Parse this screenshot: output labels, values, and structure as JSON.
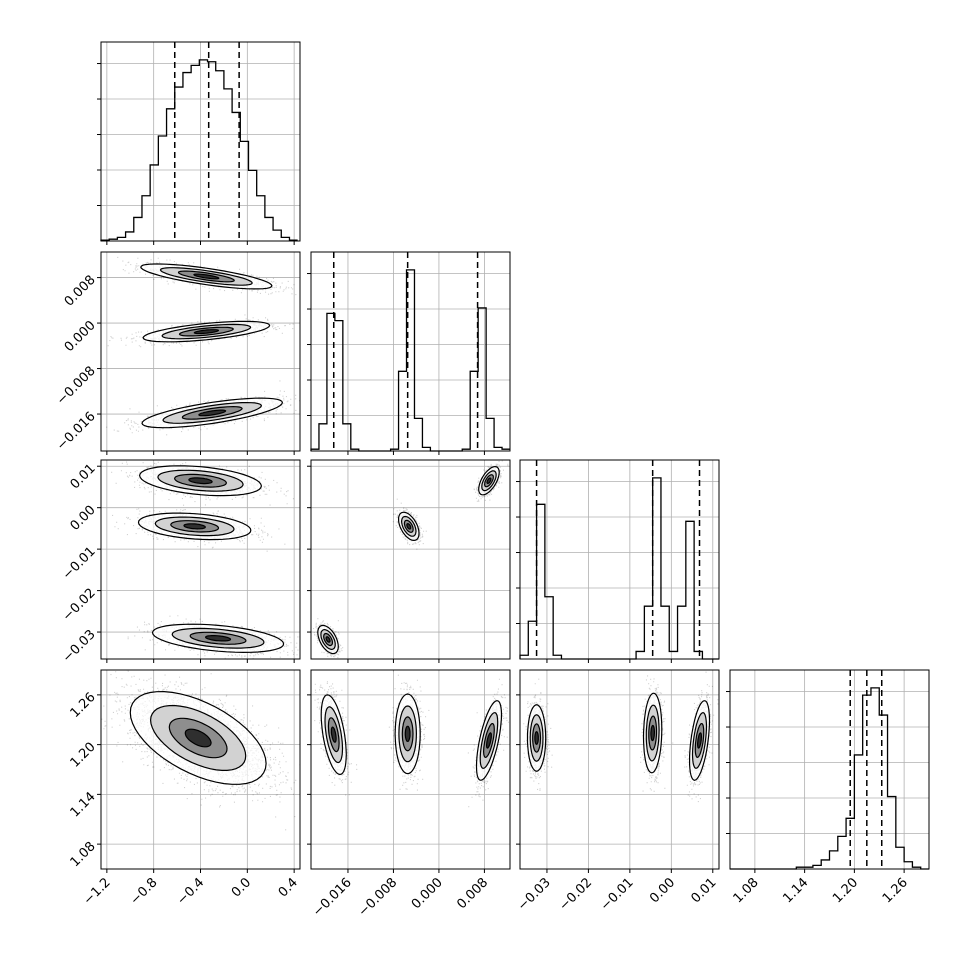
{
  "chart_data": {
    "type": "corner",
    "title": "",
    "grid": true,
    "colors": {
      "hist": "#000000",
      "grid": "#b0b0b0",
      "points": "#000000",
      "contour": "#000000",
      "density": [
        "#ffffff",
        "#c9c9c9",
        "#8c8c8c",
        "#4a4a4a",
        "#141414"
      ]
    },
    "params": [
      {
        "range": [
          -1.25,
          0.45
        ],
        "ticks": [
          -1.2,
          -0.8,
          -0.4,
          0.0,
          0.4
        ],
        "tick_labels": [
          "−1.2",
          "−0.8",
          "−0.4",
          "0.0",
          "0.4"
        ],
        "quantiles": [
          -0.62,
          -0.33,
          -0.07
        ]
      },
      {
        "range": [
          -0.0225,
          0.0125
        ],
        "ticks": [
          -0.016,
          -0.008,
          0.0,
          0.008
        ],
        "tick_labels": [
          "−0.016",
          "−0.008",
          "0.000",
          "0.008"
        ],
        "quantiles": [
          -0.0185,
          -0.0055,
          0.0068
        ]
      },
      {
        "range": [
          -0.0365,
          0.0115
        ],
        "ticks": [
          -0.03,
          -0.02,
          -0.01,
          0.0,
          0.01
        ],
        "tick_labels": [
          "−0.03",
          "−0.02",
          "−0.01",
          "0.00",
          "0.01"
        ],
        "quantiles": [
          -0.0325,
          -0.0045,
          0.0068
        ]
      },
      {
        "range": [
          1.05,
          1.29
        ],
        "ticks": [
          1.08,
          1.14,
          1.2,
          1.26
        ],
        "tick_labels": [
          "1.08",
          "1.14",
          "1.20",
          "1.26"
        ],
        "quantiles": [
          1.195,
          1.215,
          1.233
        ]
      }
    ],
    "histograms": [
      {
        "param": 0,
        "bins": [
          -1.25,
          -1.18,
          -1.11,
          -1.04,
          -0.97,
          -0.9,
          -0.83,
          -0.76,
          -0.69,
          -0.62,
          -0.55,
          -0.48,
          -0.41,
          -0.34,
          -0.27,
          -0.2,
          -0.13,
          -0.06,
          0.01,
          0.08,
          0.15,
          0.22,
          0.29,
          0.36,
          0.43
        ],
        "counts": [
          0.005,
          0.01,
          0.02,
          0.05,
          0.13,
          0.25,
          0.42,
          0.58,
          0.73,
          0.85,
          0.93,
          0.97,
          1.0,
          0.99,
          0.94,
          0.84,
          0.71,
          0.55,
          0.39,
          0.25,
          0.13,
          0.06,
          0.02,
          0.005
        ]
      },
      {
        "param": 1,
        "bins": [
          -0.0225,
          -0.0211,
          -0.0197,
          -0.0183,
          -0.0169,
          -0.0155,
          -0.0141,
          -0.0127,
          -0.0113,
          -0.0099,
          -0.0085,
          -0.0071,
          -0.0057,
          -0.0043,
          -0.0029,
          -0.0015,
          -0.0001,
          0.0013,
          0.0027,
          0.0041,
          0.0055,
          0.0069,
          0.0083,
          0.0097,
          0.0111,
          0.0125
        ],
        "counts": [
          0.01,
          0.15,
          0.76,
          0.72,
          0.15,
          0.01,
          0.0,
          0.0,
          0.0,
          0.0,
          0.01,
          0.44,
          1.0,
          0.18,
          0.02,
          0.0,
          0.0,
          0.0,
          0.0,
          0.01,
          0.44,
          0.79,
          0.18,
          0.02,
          0.01
        ]
      },
      {
        "param": 2,
        "bins": [
          -0.0365,
          -0.0345,
          -0.0325,
          -0.0305,
          -0.0285,
          -0.0265,
          -0.0245,
          -0.0225,
          -0.0205,
          -0.0185,
          -0.0165,
          -0.0145,
          -0.0125,
          -0.0105,
          -0.0085,
          -0.0065,
          -0.0045,
          -0.0025,
          -0.0005,
          0.0015,
          0.0035,
          0.0055,
          0.0075,
          0.0095,
          0.0115
        ],
        "counts": [
          0.02,
          0.2,
          0.82,
          0.33,
          0.02,
          0.0,
          0.0,
          0.0,
          0.0,
          0.0,
          0.0,
          0.0,
          0.0,
          0.0,
          0.04,
          0.28,
          0.96,
          0.28,
          0.04,
          0.28,
          0.73,
          0.04,
          0.0,
          0.0
        ]
      },
      {
        "param": 3,
        "bins": [
          1.05,
          1.06,
          1.07,
          1.08,
          1.09,
          1.1,
          1.11,
          1.12,
          1.13,
          1.14,
          1.15,
          1.16,
          1.17,
          1.18,
          1.19,
          1.2,
          1.21,
          1.22,
          1.23,
          1.24,
          1.25,
          1.26,
          1.27,
          1.28,
          1.29
        ],
        "counts": [
          0.0,
          0.0,
          0.0,
          0.0,
          0.0,
          0.0,
          0.0,
          0.0,
          0.01,
          0.01,
          0.02,
          0.05,
          0.1,
          0.18,
          0.28,
          0.63,
          0.96,
          1.0,
          0.85,
          0.4,
          0.12,
          0.04,
          0.01,
          0.0
        ]
      }
    ],
    "clusters": [
      {
        "row": 1,
        "col": 0,
        "blobs": [
          {
            "cx": -0.35,
            "cy": 0.0082,
            "sx": 0.28,
            "sy": 0.0011,
            "rho": -0.75,
            "n": 1000
          },
          {
            "cx": -0.35,
            "cy": -0.0015,
            "sx": 0.27,
            "sy": 0.0009,
            "rho": 0.6,
            "n": 1000
          },
          {
            "cx": -0.3,
            "cy": -0.0158,
            "sx": 0.3,
            "sy": 0.0013,
            "rho": 0.7,
            "n": 1000
          }
        ]
      },
      {
        "row": 2,
        "col": 0,
        "blobs": [
          {
            "cx": -0.4,
            "cy": 0.0065,
            "sx": 0.26,
            "sy": 0.0018,
            "rho": -0.35,
            "n": 1000
          },
          {
            "cx": -0.45,
            "cy": -0.0045,
            "sx": 0.24,
            "sy": 0.0016,
            "rho": -0.3,
            "n": 1000
          },
          {
            "cx": -0.25,
            "cy": -0.0315,
            "sx": 0.28,
            "sy": 0.0017,
            "rho": -0.4,
            "n": 1000
          }
        ]
      },
      {
        "row": 2,
        "col": 1,
        "blobs": [
          {
            "cx": 0.0088,
            "cy": 0.0065,
            "sx": 0.0009,
            "sy": 0.0017,
            "rho": 0.6,
            "n": 800
          },
          {
            "cx": -0.0053,
            "cy": -0.0045,
            "sx": 0.0009,
            "sy": 0.0017,
            "rho": -0.5,
            "n": 800
          },
          {
            "cx": -0.0195,
            "cy": -0.0318,
            "sx": 0.0009,
            "sy": 0.0017,
            "rho": -0.5,
            "n": 800
          }
        ]
      },
      {
        "row": 3,
        "col": 0,
        "blobs": [
          {
            "cx": -0.42,
            "cy": 1.208,
            "sx": 0.29,
            "sy": 0.028,
            "rho": -0.55,
            "n": 3000
          }
        ]
      },
      {
        "row": 3,
        "col": 1,
        "blobs": [
          {
            "cx": -0.0185,
            "cy": 1.212,
            "sx": 0.0011,
            "sy": 0.024,
            "rho": -0.5,
            "n": 1000
          },
          {
            "cx": -0.0055,
            "cy": 1.213,
            "sx": 0.0011,
            "sy": 0.024,
            "rho": 0.0,
            "n": 1000
          },
          {
            "cx": 0.0088,
            "cy": 1.205,
            "sx": 0.0011,
            "sy": 0.024,
            "rho": 0.65,
            "n": 1000
          }
        ]
      },
      {
        "row": 3,
        "col": 2,
        "blobs": [
          {
            "cx": -0.0325,
            "cy": 1.208,
            "sx": 0.0011,
            "sy": 0.02,
            "rho": 0.0,
            "n": 1000
          },
          {
            "cx": -0.0045,
            "cy": 1.214,
            "sx": 0.0011,
            "sy": 0.024,
            "rho": 0.1,
            "n": 1000
          },
          {
            "cx": 0.0068,
            "cy": 1.205,
            "sx": 0.0012,
            "sy": 0.024,
            "rho": 0.5,
            "n": 1000
          }
        ]
      }
    ]
  }
}
